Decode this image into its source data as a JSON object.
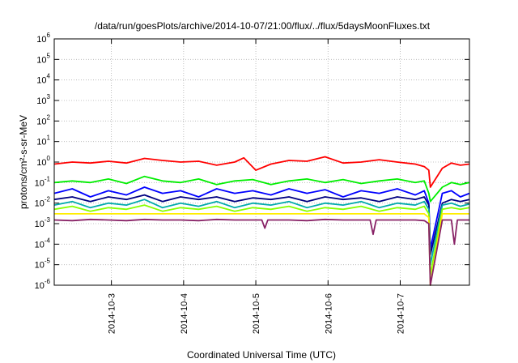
{
  "chart_data": {
    "type": "line",
    "title": "/data/run/goesPlots/archive/2014-10-07/21:00/flux/../flux/5daysMoonFluxes.txt",
    "xlabel": "Coordinated Universal Time (UTC)",
    "ylabel": "protons/cm²-s-sr-MeV",
    "yscale": "log",
    "ylim_exp": [
      -6,
      6
    ],
    "y_tick_labels": [
      {
        "base": "10",
        "exp": "-6"
      },
      {
        "base": "10",
        "exp": "-5"
      },
      {
        "base": "10",
        "exp": "-4"
      },
      {
        "base": "10",
        "exp": "-3"
      },
      {
        "base": "10",
        "exp": "-2"
      },
      {
        "base": "10",
        "exp": "-1"
      },
      {
        "base": "10",
        "exp": "0"
      },
      {
        "base": "10",
        "exp": "1"
      },
      {
        "base": "10",
        "exp": "2"
      },
      {
        "base": "10",
        "exp": "3"
      },
      {
        "base": "10",
        "exp": "4"
      },
      {
        "base": "10",
        "exp": "5"
      },
      {
        "base": "10",
        "exp": "6"
      }
    ],
    "x_ticks": [
      "2014-10-3",
      "2014-10-4",
      "2014-10-5",
      "2014-10-6",
      "2014-10-7"
    ],
    "x_start": "2014-10-02T05:00",
    "x_end": "2014-10-07T23:00",
    "grid": true,
    "series": [
      {
        "color": "#ff0000",
        "x": [
          "2014-10-02T05:00",
          "2014-10-02T11:00",
          "2014-10-02T17:00",
          "2014-10-02T23:00",
          "2014-10-03T05:00",
          "2014-10-03T11:00",
          "2014-10-03T17:00",
          "2014-10-03T23:00",
          "2014-10-04T05:00",
          "2014-10-04T11:00",
          "2014-10-04T17:00",
          "2014-10-04T20:00",
          "2014-10-05T00:00",
          "2014-10-05T05:00",
          "2014-10-05T11:00",
          "2014-10-05T17:00",
          "2014-10-05T23:00",
          "2014-10-06T05:00",
          "2014-10-06T11:00",
          "2014-10-06T17:00",
          "2014-10-06T23:00",
          "2014-10-07T05:00",
          "2014-10-07T08:00",
          "2014-10-07T09:30",
          "2014-10-07T10:00",
          "2014-10-07T14:00",
          "2014-10-07T17:00",
          "2014-10-07T20:00",
          "2014-10-07T23:00"
        ],
        "y": [
          0.8,
          1.0,
          0.9,
          1.1,
          0.9,
          1.5,
          1.2,
          1.0,
          1.1,
          0.7,
          1.0,
          1.6,
          0.4,
          0.8,
          1.2,
          1.1,
          1.8,
          0.9,
          1.0,
          1.3,
          1.0,
          0.8,
          0.6,
          0.4,
          0.06,
          0.5,
          0.9,
          0.7,
          0.8
        ]
      },
      {
        "color": "#00ee00",
        "x": [
          "2014-10-02T05:00",
          "2014-10-02T11:00",
          "2014-10-02T17:00",
          "2014-10-02T23:00",
          "2014-10-03T05:00",
          "2014-10-03T11:00",
          "2014-10-03T17:00",
          "2014-10-03T23:00",
          "2014-10-04T05:00",
          "2014-10-04T11:00",
          "2014-10-04T17:00",
          "2014-10-04T23:00",
          "2014-10-05T05:00",
          "2014-10-05T11:00",
          "2014-10-05T17:00",
          "2014-10-05T23:00",
          "2014-10-06T05:00",
          "2014-10-06T11:00",
          "2014-10-06T17:00",
          "2014-10-06T23:00",
          "2014-10-07T05:00",
          "2014-10-07T08:00",
          "2014-10-07T09:30",
          "2014-10-07T10:00",
          "2014-10-07T14:00",
          "2014-10-07T17:00",
          "2014-10-07T20:00",
          "2014-10-07T23:00"
        ],
        "y": [
          0.1,
          0.12,
          0.1,
          0.15,
          0.09,
          0.2,
          0.12,
          0.1,
          0.15,
          0.08,
          0.12,
          0.14,
          0.08,
          0.12,
          0.15,
          0.1,
          0.14,
          0.09,
          0.12,
          0.15,
          0.1,
          0.12,
          0.03,
          0.012,
          0.06,
          0.1,
          0.08,
          0.1
        ]
      },
      {
        "color": "#0000ff",
        "x": [
          "2014-10-02T05:00",
          "2014-10-02T11:00",
          "2014-10-02T17:00",
          "2014-10-02T23:00",
          "2014-10-03T05:00",
          "2014-10-03T11:00",
          "2014-10-03T17:00",
          "2014-10-03T23:00",
          "2014-10-04T05:00",
          "2014-10-04T11:00",
          "2014-10-04T17:00",
          "2014-10-04T23:00",
          "2014-10-05T05:00",
          "2014-10-05T11:00",
          "2014-10-05T17:00",
          "2014-10-05T23:00",
          "2014-10-06T05:00",
          "2014-10-06T11:00",
          "2014-10-06T17:00",
          "2014-10-06T23:00",
          "2014-10-07T05:00",
          "2014-10-07T08:00",
          "2014-10-07T09:30",
          "2014-10-07T10:00",
          "2014-10-07T14:00",
          "2014-10-07T17:00",
          "2014-10-07T20:00",
          "2014-10-07T23:00"
        ],
        "y": [
          0.03,
          0.05,
          0.02,
          0.04,
          0.025,
          0.06,
          0.03,
          0.04,
          0.02,
          0.05,
          0.03,
          0.04,
          0.025,
          0.05,
          0.03,
          0.045,
          0.02,
          0.04,
          0.03,
          0.05,
          0.025,
          0.04,
          0.01,
          6e-05,
          0.03,
          0.04,
          0.02,
          0.03
        ]
      },
      {
        "color": "#000080",
        "x": [
          "2014-10-02T05:00",
          "2014-10-02T11:00",
          "2014-10-02T17:00",
          "2014-10-02T23:00",
          "2014-10-03T05:00",
          "2014-10-03T11:00",
          "2014-10-03T17:00",
          "2014-10-03T23:00",
          "2014-10-04T05:00",
          "2014-10-04T11:00",
          "2014-10-04T17:00",
          "2014-10-04T23:00",
          "2014-10-05T05:00",
          "2014-10-05T11:00",
          "2014-10-05T17:00",
          "2014-10-05T23:00",
          "2014-10-06T05:00",
          "2014-10-06T11:00",
          "2014-10-06T17:00",
          "2014-10-06T23:00",
          "2014-10-07T05:00",
          "2014-10-07T08:00",
          "2014-10-07T09:30",
          "2014-10-07T10:00",
          "2014-10-07T14:00",
          "2014-10-07T17:00",
          "2014-10-07T20:00",
          "2014-10-07T23:00"
        ],
        "y": [
          0.015,
          0.02,
          0.012,
          0.02,
          0.015,
          0.025,
          0.012,
          0.02,
          0.015,
          0.02,
          0.012,
          0.018,
          0.015,
          0.02,
          0.012,
          0.02,
          0.015,
          0.018,
          0.012,
          0.02,
          0.015,
          0.02,
          0.008,
          3e-05,
          0.01,
          0.015,
          0.012,
          0.015
        ]
      },
      {
        "color": "#00aaaa",
        "x": [
          "2014-10-02T05:00",
          "2014-10-02T11:00",
          "2014-10-02T17:00",
          "2014-10-02T23:00",
          "2014-10-03T05:00",
          "2014-10-03T11:00",
          "2014-10-03T17:00",
          "2014-10-03T23:00",
          "2014-10-04T05:00",
          "2014-10-04T11:00",
          "2014-10-04T17:00",
          "2014-10-04T23:00",
          "2014-10-05T05:00",
          "2014-10-05T11:00",
          "2014-10-05T17:00",
          "2014-10-05T23:00",
          "2014-10-06T05:00",
          "2014-10-06T11:00",
          "2014-10-06T17:00",
          "2014-10-06T23:00",
          "2014-10-07T05:00",
          "2014-10-07T08:00",
          "2014-10-07T09:30",
          "2014-10-07T10:00",
          "2014-10-07T14:00",
          "2014-10-07T17:00",
          "2014-10-07T20:00",
          "2014-10-07T23:00"
        ],
        "y": [
          0.008,
          0.012,
          0.006,
          0.01,
          0.008,
          0.015,
          0.006,
          0.01,
          0.007,
          0.012,
          0.006,
          0.01,
          0.008,
          0.012,
          0.006,
          0.01,
          0.008,
          0.012,
          0.006,
          0.01,
          0.008,
          0.012,
          0.005,
          1e-05,
          0.008,
          0.01,
          0.007,
          0.009
        ]
      },
      {
        "color": "#88ff00",
        "x": [
          "2014-10-02T05:00",
          "2014-10-02T11:00",
          "2014-10-02T17:00",
          "2014-10-02T23:00",
          "2014-10-03T05:00",
          "2014-10-03T11:00",
          "2014-10-03T17:00",
          "2014-10-03T23:00",
          "2014-10-04T05:00",
          "2014-10-04T11:00",
          "2014-10-04T17:00",
          "2014-10-04T23:00",
          "2014-10-05T05:00",
          "2014-10-05T11:00",
          "2014-10-05T17:00",
          "2014-10-05T23:00",
          "2014-10-06T05:00",
          "2014-10-06T11:00",
          "2014-10-06T17:00",
          "2014-10-06T23:00",
          "2014-10-07T05:00",
          "2014-10-07T08:00",
          "2014-10-07T09:30",
          "2014-10-07T10:00",
          "2014-10-07T14:00",
          "2014-10-07T17:00",
          "2014-10-07T20:00",
          "2014-10-07T23:00"
        ],
        "y": [
          0.005,
          0.007,
          0.004,
          0.006,
          0.005,
          0.008,
          0.004,
          0.006,
          0.005,
          0.007,
          0.004,
          0.006,
          0.005,
          0.007,
          0.004,
          0.006,
          0.005,
          0.007,
          0.004,
          0.006,
          0.005,
          0.007,
          0.003,
          3e-06,
          0.005,
          0.006,
          0.005,
          0.006
        ]
      },
      {
        "color": "#ffee00",
        "x": [
          "2014-10-02T05:00",
          "2014-10-02T11:00",
          "2014-10-02T17:00",
          "2014-10-02T23:00",
          "2014-10-03T05:00",
          "2014-10-03T11:00",
          "2014-10-03T17:00",
          "2014-10-03T23:00",
          "2014-10-04T05:00",
          "2014-10-04T11:00",
          "2014-10-04T17:00",
          "2014-10-04T23:00",
          "2014-10-05T05:00",
          "2014-10-05T11:00",
          "2014-10-05T17:00",
          "2014-10-05T23:00",
          "2014-10-06T05:00",
          "2014-10-06T11:00",
          "2014-10-06T17:00",
          "2014-10-06T23:00",
          "2014-10-07T05:00",
          "2014-10-07T08:00",
          "2014-10-07T09:30",
          "2014-10-07T10:00",
          "2014-10-07T14:00",
          "2014-10-07T17:00",
          "2014-10-07T20:00",
          "2014-10-07T23:00"
        ],
        "y": [
          0.003,
          0.003,
          0.003,
          0.003,
          0.003,
          0.003,
          0.003,
          0.003,
          0.003,
          0.003,
          0.003,
          0.003,
          0.003,
          0.003,
          0.003,
          0.003,
          0.003,
          0.003,
          0.003,
          0.003,
          0.003,
          0.003,
          0.002,
          1e-06,
          0.003,
          0.003,
          0.003,
          0.003
        ]
      },
      {
        "color": "#882266",
        "x": [
          "2014-10-02T05:00",
          "2014-10-02T11:00",
          "2014-10-02T17:00",
          "2014-10-02T23:00",
          "2014-10-03T05:00",
          "2014-10-03T11:00",
          "2014-10-03T17:00",
          "2014-10-03T23:00",
          "2014-10-04T05:00",
          "2014-10-04T11:00",
          "2014-10-04T17:00",
          "2014-10-04T23:00",
          "2014-10-05T02:00",
          "2014-10-05T03:00",
          "2014-10-05T04:00",
          "2014-10-05T11:00",
          "2014-10-05T17:00",
          "2014-10-05T23:00",
          "2014-10-06T05:00",
          "2014-10-06T11:00",
          "2014-10-06T14:00",
          "2014-10-06T15:00",
          "2014-10-06T16:00",
          "2014-10-06T23:00",
          "2014-10-07T05:00",
          "2014-10-07T08:00",
          "2014-10-07T09:30",
          "2014-10-07T10:00",
          "2014-10-07T14:00",
          "2014-10-07T17:00",
          "2014-10-07T18:00",
          "2014-10-07T19:00",
          "2014-10-07T23:00"
        ],
        "y": [
          0.0015,
          0.0014,
          0.0016,
          0.0015,
          0.0014,
          0.0016,
          0.0015,
          0.0015,
          0.0014,
          0.0016,
          0.0015,
          0.0015,
          0.0015,
          0.0006,
          0.0015,
          0.0015,
          0.0014,
          0.0016,
          0.0015,
          0.0015,
          0.0015,
          0.0003,
          0.0015,
          0.0015,
          0.0015,
          0.0014,
          0.001,
          9e-07,
          0.0015,
          0.0015,
          0.0001,
          0.0015,
          0.0015
        ]
      }
    ]
  }
}
